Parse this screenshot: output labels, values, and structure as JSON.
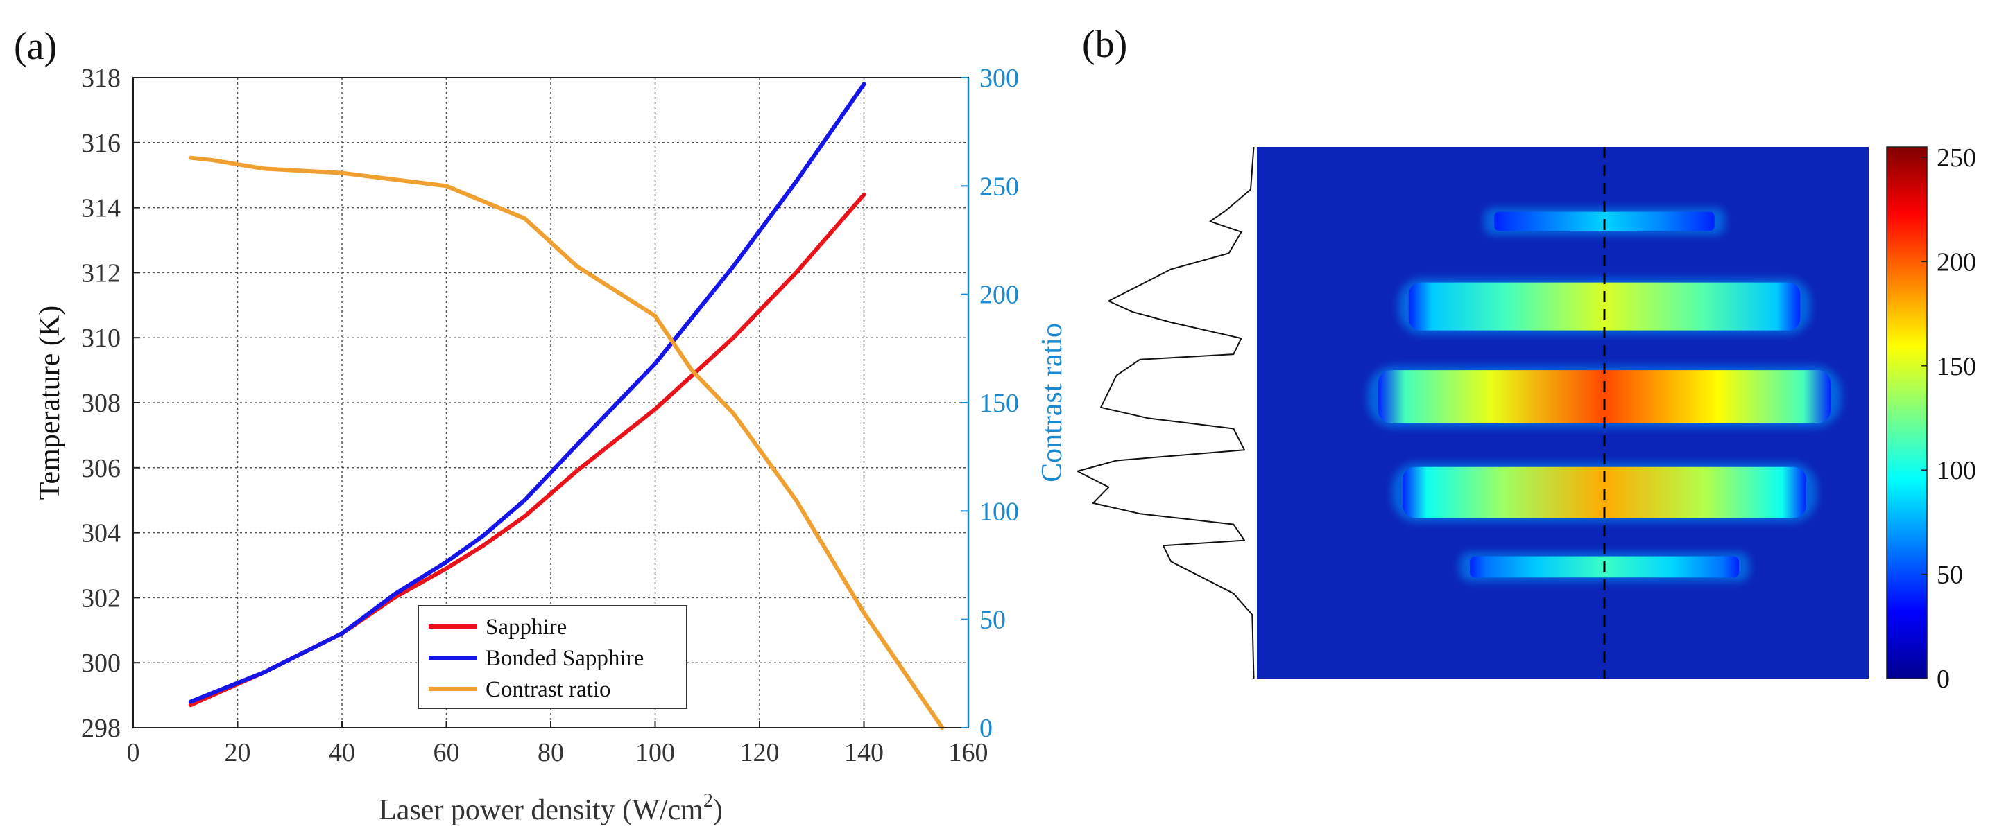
{
  "chart_data": [
    {
      "panel_label": "(a)",
      "type": "line",
      "title": "",
      "xlabel": "Laser power density (W/cm",
      "xlabel_superscript": "2",
      "xlabel_suffix": ")",
      "ylabel": "Temperature (K)",
      "y2label": "Contrast ratio",
      "xlim": [
        0,
        160
      ],
      "ylim": [
        298,
        318
      ],
      "y2lim": [
        0,
        300
      ],
      "xticks": [
        0,
        20,
        40,
        60,
        80,
        100,
        120,
        140,
        160
      ],
      "yticks": [
        298,
        300,
        302,
        304,
        306,
        308,
        310,
        312,
        314,
        316,
        318
      ],
      "y2ticks": [
        0,
        50,
        100,
        150,
        200,
        250,
        300
      ],
      "grid": true,
      "legend_position": "bottom-center",
      "series": [
        {
          "name": "Sapphire",
          "axis": "left",
          "color": "#e8131b",
          "x": [
            11,
            25,
            40,
            50,
            60,
            67,
            75,
            85,
            100,
            115,
            127,
            140
          ],
          "y": [
            298.7,
            299.7,
            300.9,
            302.0,
            302.9,
            303.6,
            304.5,
            305.9,
            307.8,
            310.0,
            312.0,
            314.4
          ]
        },
        {
          "name": "Bonded Sapphire",
          "axis": "left",
          "color": "#1515e8",
          "x": [
            11,
            25,
            40,
            50,
            60,
            67,
            75,
            85,
            100,
            115,
            127,
            140
          ],
          "y": [
            298.8,
            299.7,
            300.9,
            302.1,
            303.1,
            303.9,
            305.0,
            306.7,
            309.2,
            312.2,
            314.8,
            317.8
          ]
        },
        {
          "name": "Contrast ratio",
          "axis": "right",
          "color": "#f0a030",
          "x": [
            11,
            15,
            25,
            40,
            50,
            60,
            67,
            75,
            85,
            100,
            107,
            115,
            127,
            140,
            155
          ],
          "y": [
            263,
            262,
            258,
            256,
            253,
            250,
            243,
            235,
            213,
            190,
            165,
            145,
            105,
            53,
            0
          ]
        }
      ]
    },
    {
      "panel_label": "(b)",
      "type": "heatmap",
      "title": "",
      "colorbar_range": [
        0,
        255
      ],
      "colorbar_ticks": [
        0,
        50,
        100,
        150,
        200,
        250
      ],
      "colormap": "jet",
      "background_color": "#0b25b8",
      "stripes": [
        {
          "center": 0.14,
          "half_height": 0.018,
          "half_width": 0.18,
          "peak": 85
        },
        {
          "center": 0.3,
          "half_height": 0.045,
          "half_width": 0.32,
          "peak": 150
        },
        {
          "center": 0.47,
          "half_height": 0.05,
          "half_width": 0.37,
          "peak": 205
        },
        {
          "center": 0.65,
          "half_height": 0.048,
          "half_width": 0.33,
          "peak": 180
        },
        {
          "center": 0.79,
          "half_height": 0.02,
          "half_width": 0.22,
          "peak": 110
        }
      ],
      "vertical_profile": [
        {
          "y": 0.0,
          "v": 0.02
        },
        {
          "y": 0.08,
          "v": 0.04
        },
        {
          "y": 0.12,
          "v": 0.2
        },
        {
          "y": 0.14,
          "v": 0.3
        },
        {
          "y": 0.16,
          "v": 0.1
        },
        {
          "y": 0.2,
          "v": 0.18
        },
        {
          "y": 0.23,
          "v": 0.55
        },
        {
          "y": 0.26,
          "v": 0.75
        },
        {
          "y": 0.29,
          "v": 0.95
        },
        {
          "y": 0.31,
          "v": 0.8
        },
        {
          "y": 0.33,
          "v": 0.55
        },
        {
          "y": 0.36,
          "v": 0.1
        },
        {
          "y": 0.39,
          "v": 0.15
        },
        {
          "y": 0.4,
          "v": 0.75
        },
        {
          "y": 0.43,
          "v": 0.9
        },
        {
          "y": 0.46,
          "v": 0.95
        },
        {
          "y": 0.49,
          "v": 1.0
        },
        {
          "y": 0.51,
          "v": 0.7
        },
        {
          "y": 0.53,
          "v": 0.15
        },
        {
          "y": 0.57,
          "v": 0.08
        },
        {
          "y": 0.59,
          "v": 0.9
        },
        {
          "y": 0.61,
          "v": 1.15
        },
        {
          "y": 0.64,
          "v": 0.95
        },
        {
          "y": 0.67,
          "v": 1.05
        },
        {
          "y": 0.69,
          "v": 0.75
        },
        {
          "y": 0.71,
          "v": 0.15
        },
        {
          "y": 0.74,
          "v": 0.08
        },
        {
          "y": 0.75,
          "v": 0.6
        },
        {
          "y": 0.78,
          "v": 0.55
        },
        {
          "y": 0.81,
          "v": 0.35
        },
        {
          "y": 0.84,
          "v": 0.15
        },
        {
          "y": 0.88,
          "v": 0.03
        },
        {
          "y": 1.0,
          "v": 0.02
        }
      ]
    }
  ]
}
